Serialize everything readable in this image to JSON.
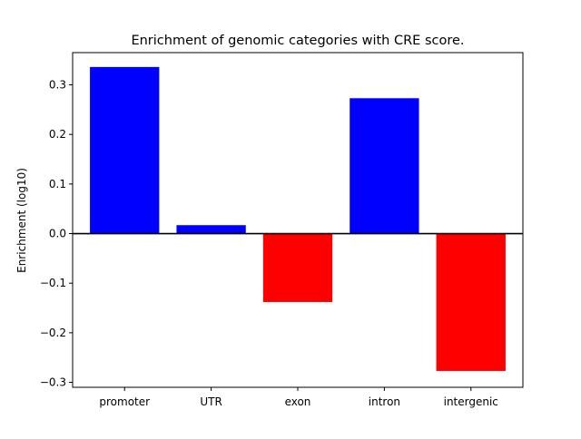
{
  "chart_data": {
    "type": "bar",
    "title": "Enrichment of genomic categories with CRE score.",
    "xlabel": "",
    "ylabel": "Enrichment (log10)",
    "categories": [
      "promoter",
      "UTR",
      "exon",
      "intron",
      "intergenic"
    ],
    "values": [
      0.336,
      0.017,
      -0.138,
      0.273,
      -0.277
    ],
    "ylim": [
      -0.31,
      0.365
    ],
    "yticks": [
      -0.3,
      -0.2,
      -0.1,
      0.0,
      0.1,
      0.2,
      0.3
    ],
    "ytick_labels": [
      "−0.3",
      "−0.2",
      "−0.1",
      "0.0",
      "0.1",
      "0.2",
      "0.3"
    ],
    "grid": false,
    "positive_color": "#0000ff",
    "negative_color": "#ff0000",
    "zero_line": true
  }
}
